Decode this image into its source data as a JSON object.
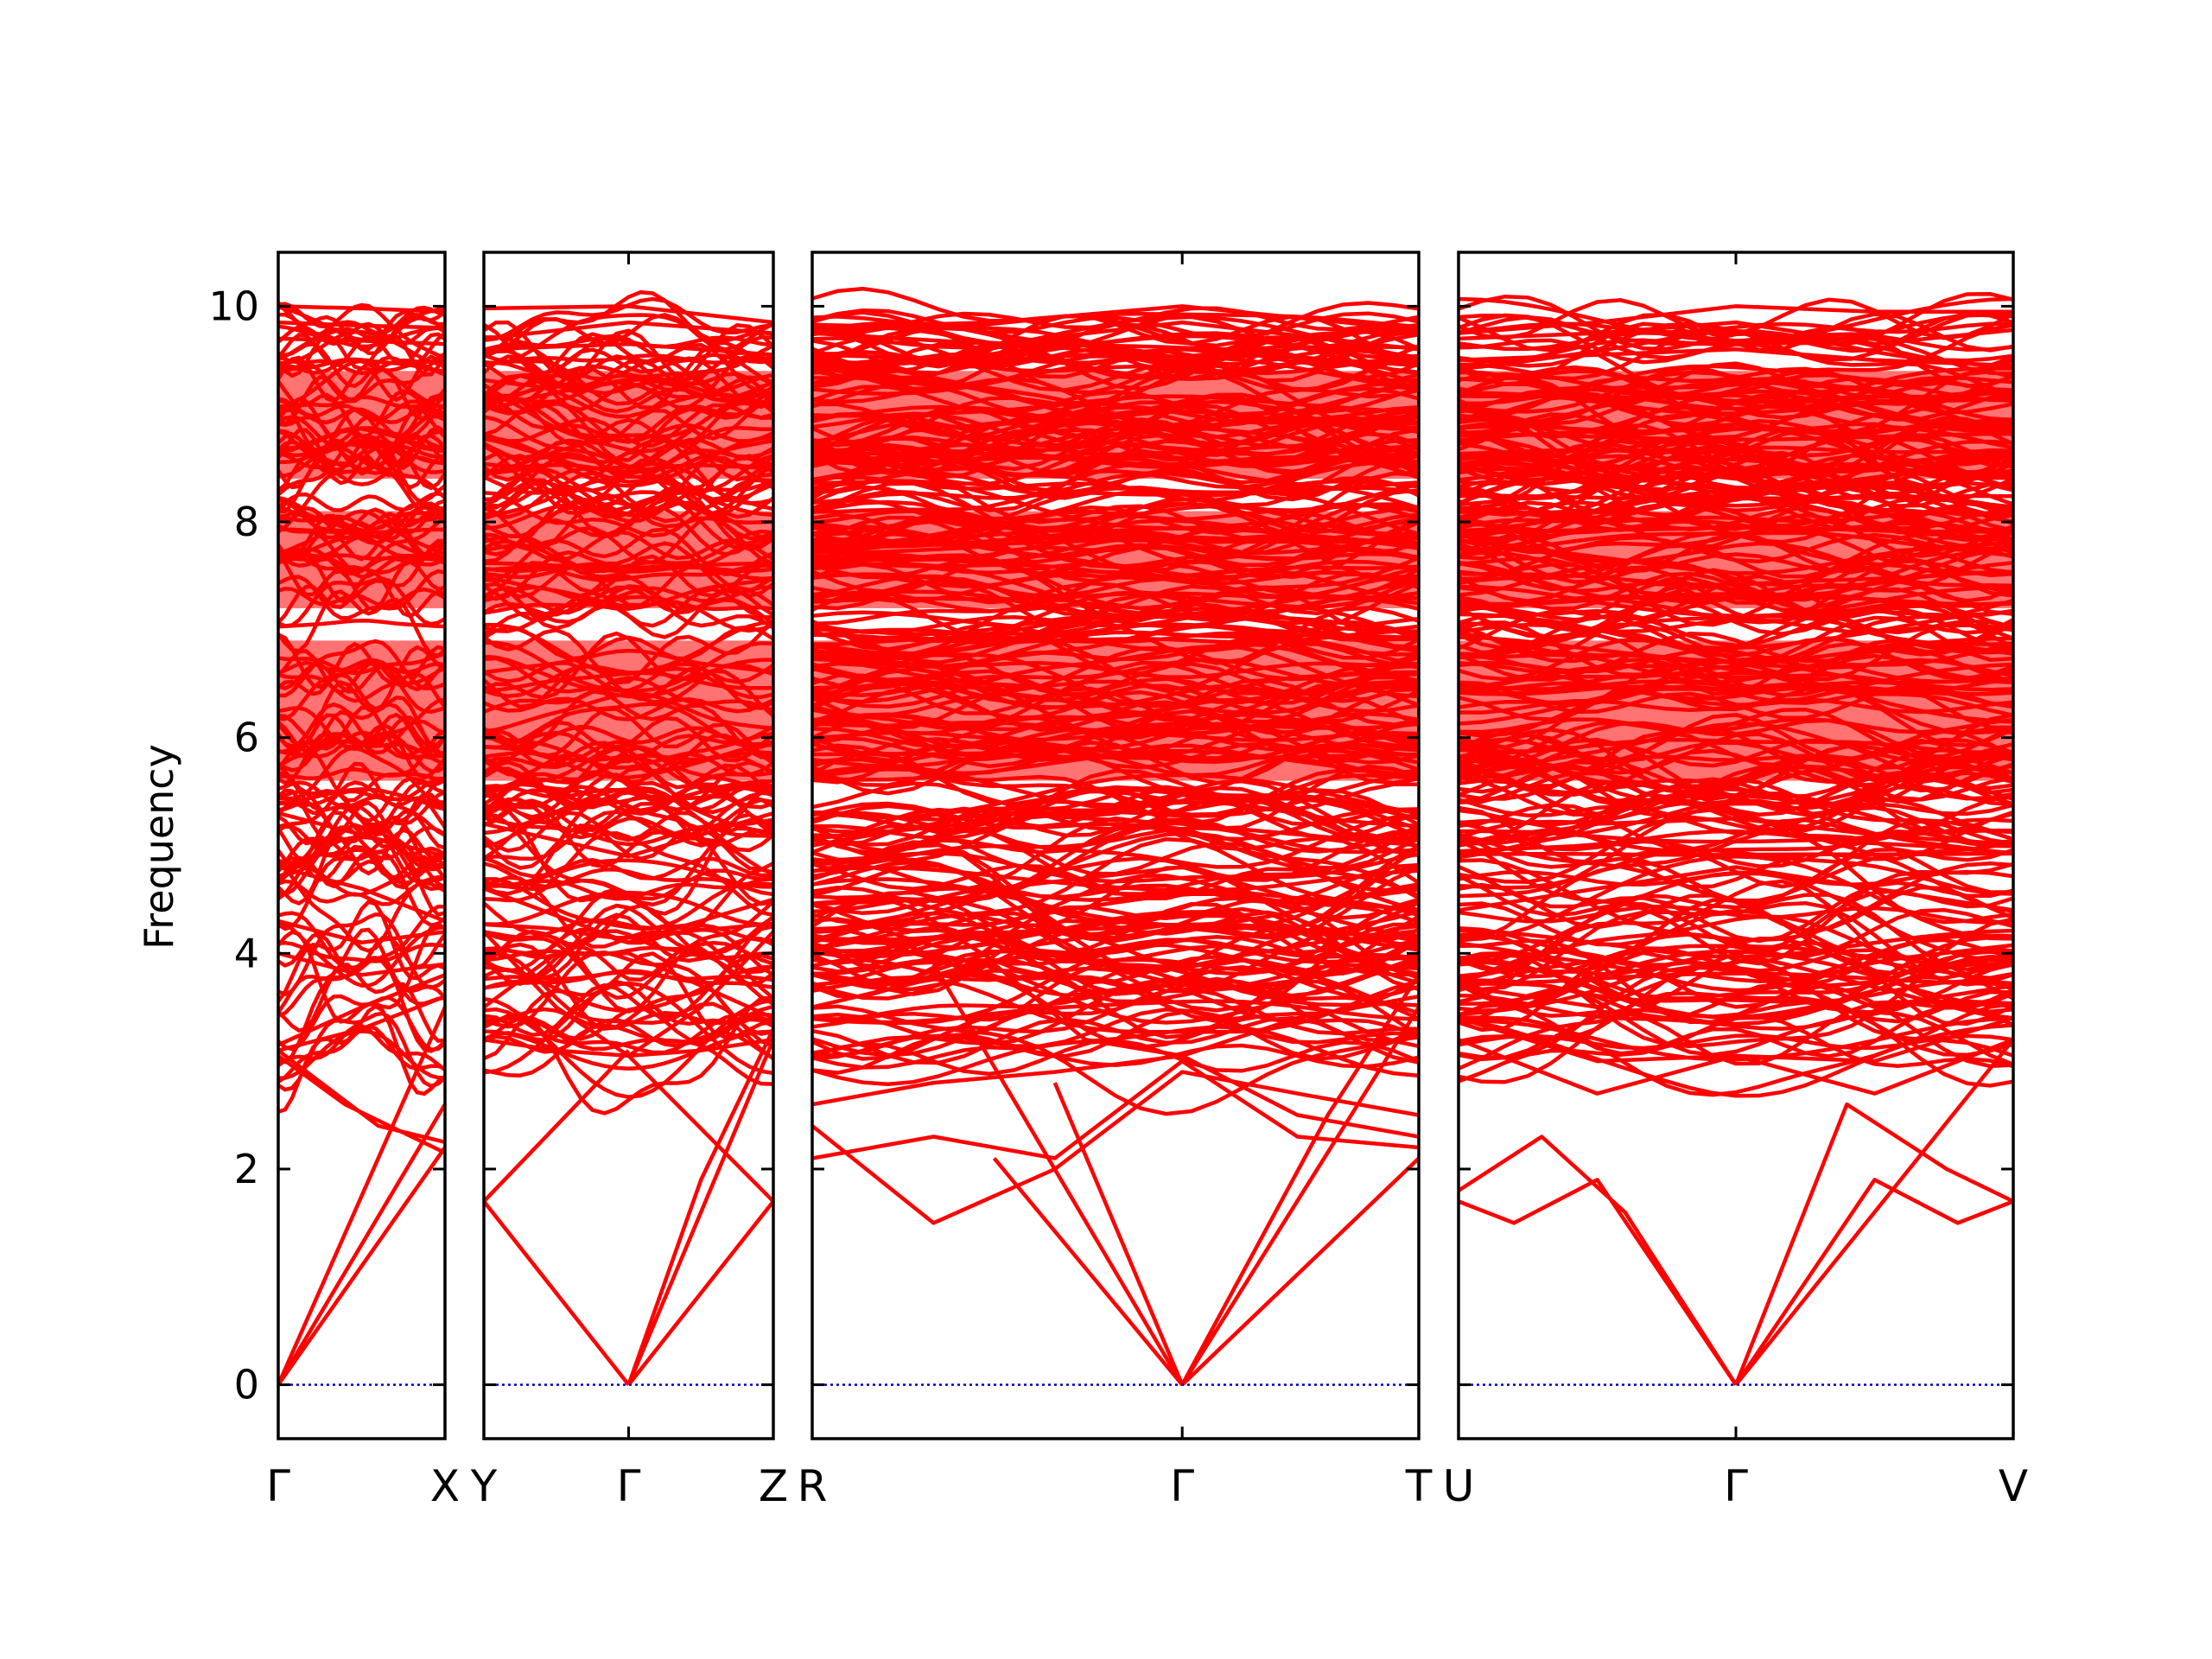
{
  "chart_data": {
    "type": "line",
    "title": "",
    "ylabel": "Frequency",
    "ylim": [
      -0.5,
      10.5
    ],
    "yticks": [
      0,
      2,
      4,
      6,
      8,
      10
    ],
    "colors": {
      "bands": "#ff0000",
      "zero_line": "#0000cc",
      "axes": "#000000"
    },
    "grid": false,
    "panels": [
      {
        "name": "panel-gamma-x",
        "kpoints": [
          {
            "label": "Γ",
            "pos": 0
          },
          {
            "label": "X",
            "pos": 1
          }
        ]
      },
      {
        "name": "panel-y-gamma-z",
        "kpoints": [
          {
            "label": "Y",
            "pos": 0
          },
          {
            "label": "Γ",
            "pos": 0.5
          },
          {
            "label": "Z",
            "pos": 1
          }
        ]
      },
      {
        "name": "panel-r-gamma-t",
        "kpoints": [
          {
            "label": "R",
            "pos": 0
          },
          {
            "label": "Γ",
            "pos": 0.61
          },
          {
            "label": "T",
            "pos": 1
          }
        ]
      },
      {
        "name": "panel-u-gamma-v",
        "kpoints": [
          {
            "label": "U",
            "pos": 0
          },
          {
            "label": "Γ",
            "pos": 0.5
          },
          {
            "label": "V",
            "pos": 1
          }
        ]
      }
    ],
    "series": [
      {
        "panel": 0,
        "pts": [
          [
            0,
            0
          ],
          [
            1,
            3.5
          ]
        ]
      },
      {
        "panel": 0,
        "pts": [
          [
            0,
            0
          ],
          [
            1,
            2.6
          ]
        ]
      },
      {
        "panel": 0,
        "pts": [
          [
            0,
            0
          ],
          [
            1,
            2.2
          ]
        ]
      },
      {
        "panel": 0,
        "pts": [
          [
            0,
            3.1
          ],
          [
            0.3,
            2.75
          ],
          [
            0.6,
            2.4
          ],
          [
            1,
            2.25
          ]
        ]
      },
      {
        "panel": 0,
        "pts": [
          [
            0,
            3.05
          ],
          [
            0.4,
            2.6
          ],
          [
            1,
            2.15
          ]
        ]
      },
      {
        "panel": 0,
        "pts": [
          [
            0,
            3.1
          ],
          [
            0.5,
            3.3
          ],
          [
            1,
            3.6
          ]
        ]
      },
      {
        "panel": 0,
        "pts": [
          [
            0,
            3.15
          ],
          [
            0.5,
            3.5
          ],
          [
            1,
            3.8
          ]
        ]
      },
      {
        "panel": 0,
        "pts": [
          [
            0,
            4.0
          ],
          [
            0.5,
            3.8
          ],
          [
            1,
            3.9
          ]
        ]
      },
      {
        "panel": 0,
        "pts": [
          [
            0,
            4.3
          ],
          [
            0.5,
            4.1
          ],
          [
            1,
            4.2
          ]
        ]
      },
      {
        "panel": 0,
        "pts": [
          [
            0,
            4.8
          ],
          [
            0.5,
            4.6
          ],
          [
            1,
            4.3
          ]
        ]
      },
      {
        "panel": 0,
        "pts": [
          [
            0,
            5.3
          ],
          [
            0.5,
            5.1
          ],
          [
            1,
            4.9
          ]
        ]
      },
      {
        "panel": 0,
        "pts": [
          [
            0,
            10.0
          ],
          [
            0.5,
            9.98
          ],
          [
            1,
            9.95
          ]
        ]
      },
      {
        "panel": 0,
        "pts": [
          [
            0,
            9.85
          ],
          [
            0.5,
            9.82
          ],
          [
            1,
            9.8
          ]
        ]
      },
      {
        "panel": 0,
        "pts": [
          [
            0,
            9.7
          ],
          [
            0.5,
            9.68
          ],
          [
            1,
            9.65
          ]
        ]
      },
      {
        "panel": 1,
        "pts": [
          [
            0,
            1.7
          ],
          [
            0.5,
            0
          ]
        ]
      },
      {
        "panel": 1,
        "pts": [
          [
            0,
            1.7
          ],
          [
            0.5,
            3.1
          ]
        ]
      },
      {
        "panel": 1,
        "pts": [
          [
            0.5,
            0
          ],
          [
            1,
            1.7
          ]
        ]
      },
      {
        "panel": 1,
        "pts": [
          [
            0.5,
            3.05
          ],
          [
            1,
            1.7
          ]
        ]
      },
      {
        "panel": 1,
        "pts": [
          [
            0.5,
            0
          ],
          [
            1,
            3.2
          ]
        ]
      },
      {
        "panel": 1,
        "pts": [
          [
            0.5,
            0
          ],
          [
            0.75,
            1.9
          ],
          [
            1,
            3.3
          ]
        ]
      },
      {
        "panel": 1,
        "pts": [
          [
            0,
            3.2
          ],
          [
            0.25,
            3.1
          ],
          [
            0.5,
            3.05
          ],
          [
            0.75,
            3.1
          ],
          [
            1,
            3.2
          ]
        ]
      },
      {
        "panel": 1,
        "pts": [
          [
            0,
            4.2
          ],
          [
            0.25,
            3.5
          ],
          [
            0.5,
            3.05
          ],
          [
            0.75,
            3.5
          ],
          [
            1,
            4.2
          ]
        ]
      },
      {
        "panel": 1,
        "pts": [
          [
            0,
            3.5
          ],
          [
            0.25,
            4.0
          ],
          [
            0.5,
            4.0
          ],
          [
            0.75,
            3.7
          ],
          [
            1,
            3.4
          ]
        ]
      },
      {
        "panel": 1,
        "pts": [
          [
            0,
            4.6
          ],
          [
            0.5,
            4.1
          ],
          [
            1,
            4.5
          ]
        ]
      },
      {
        "panel": 1,
        "pts": [
          [
            0,
            5.2
          ],
          [
            0.5,
            4.9
          ],
          [
            1,
            5.3
          ]
        ]
      },
      {
        "panel": 1,
        "pts": [
          [
            0,
            9.98
          ],
          [
            0.5,
            10.0
          ],
          [
            1,
            9.85
          ]
        ]
      },
      {
        "panel": 1,
        "pts": [
          [
            0,
            9.7
          ],
          [
            0.5,
            9.85
          ],
          [
            1,
            9.75
          ]
        ]
      },
      {
        "panel": 1,
        "pts": [
          [
            0,
            9.6
          ],
          [
            0.5,
            9.65
          ],
          [
            1,
            9.55
          ]
        ]
      },
      {
        "panel": 2,
        "pts": [
          [
            0,
            2.4
          ],
          [
            0.2,
            1.5
          ],
          [
            0.4,
            2.0
          ],
          [
            0.61,
            2.9
          ],
          [
            0.8,
            2.7
          ],
          [
            1,
            2.5
          ]
        ]
      },
      {
        "panel": 2,
        "pts": [
          [
            0,
            2.1
          ],
          [
            0.2,
            2.3
          ],
          [
            0.4,
            2.1
          ],
          [
            0.61,
            3.0
          ],
          [
            0.8,
            2.3
          ],
          [
            1,
            2.2
          ]
        ]
      },
      {
        "panel": 2,
        "pts": [
          [
            0,
            2.6
          ],
          [
            0.2,
            2.8
          ],
          [
            0.4,
            2.9
          ],
          [
            0.61,
            3.05
          ],
          [
            0.8,
            2.5
          ],
          [
            1,
            2.3
          ]
        ]
      },
      {
        "panel": 2,
        "pts": [
          [
            0,
            3.5
          ],
          [
            0.3,
            3.9
          ],
          [
            0.45,
            3.2
          ],
          [
            0.61,
            3.05
          ],
          [
            0.8,
            3.4
          ],
          [
            1,
            3.6
          ]
        ]
      },
      {
        "panel": 2,
        "pts": [
          [
            0.2,
            3.9
          ],
          [
            0.61,
            0
          ]
        ]
      },
      {
        "panel": 2,
        "pts": [
          [
            0.3,
            2.1
          ],
          [
            0.61,
            0
          ]
        ]
      },
      {
        "panel": 2,
        "pts": [
          [
            0.4,
            2.8
          ],
          [
            0.61,
            0
          ]
        ]
      },
      {
        "panel": 2,
        "pts": [
          [
            0.61,
            0
          ],
          [
            1,
            2.1
          ]
        ]
      },
      {
        "panel": 2,
        "pts": [
          [
            0.61,
            0
          ],
          [
            1,
            3.5
          ]
        ]
      },
      {
        "panel": 2,
        "pts": [
          [
            0.61,
            0
          ],
          [
            0.85,
            2.5
          ],
          [
            1,
            3.8
          ]
        ]
      },
      {
        "panel": 2,
        "pts": [
          [
            0,
            4.1
          ],
          [
            0.3,
            4.6
          ],
          [
            0.61,
            4.8
          ],
          [
            0.8,
            4.5
          ],
          [
            1,
            4.4
          ]
        ]
      },
      {
        "panel": 2,
        "pts": [
          [
            0,
            5.0
          ],
          [
            0.3,
            5.3
          ],
          [
            0.61,
            5.2
          ],
          [
            1,
            5.0
          ]
        ]
      },
      {
        "panel": 2,
        "pts": [
          [
            0,
            9.8
          ],
          [
            0.3,
            9.85
          ],
          [
            0.61,
            10.0
          ],
          [
            1,
            9.78
          ]
        ]
      },
      {
        "panel": 2,
        "pts": [
          [
            0,
            9.75
          ],
          [
            0.3,
            9.65
          ],
          [
            0.61,
            9.85
          ],
          [
            1,
            9.6
          ]
        ]
      },
      {
        "panel": 2,
        "pts": [
          [
            0,
            9.55
          ],
          [
            0.3,
            9.5
          ],
          [
            0.61,
            9.6
          ],
          [
            1,
            9.45
          ]
        ]
      },
      {
        "panel": 3,
        "pts": [
          [
            0,
            1.7
          ],
          [
            0.1,
            1.5
          ],
          [
            0.25,
            1.9
          ],
          [
            0.5,
            0
          ]
        ]
      },
      {
        "panel": 3,
        "pts": [
          [
            0,
            1.8
          ],
          [
            0.15,
            2.3
          ],
          [
            0.3,
            1.6
          ],
          [
            0.5,
            0
          ]
        ]
      },
      {
        "panel": 3,
        "pts": [
          [
            0.5,
            0
          ],
          [
            0.75,
            1.9
          ],
          [
            0.9,
            1.5
          ],
          [
            1,
            1.7
          ]
        ]
      },
      {
        "panel": 3,
        "pts": [
          [
            0.5,
            0
          ],
          [
            0.7,
            2.6
          ],
          [
            0.88,
            2.0
          ],
          [
            1,
            1.7
          ]
        ]
      },
      {
        "panel": 3,
        "pts": [
          [
            0.5,
            0
          ],
          [
            1,
            3.2
          ]
        ]
      },
      {
        "panel": 3,
        "pts": [
          [
            0,
            3.2
          ],
          [
            0.25,
            2.7
          ],
          [
            0.5,
            3.05
          ],
          [
            0.75,
            2.7
          ],
          [
            1,
            3.2
          ]
        ]
      },
      {
        "panel": 3,
        "pts": [
          [
            0,
            3.4
          ],
          [
            0.25,
            3.0
          ],
          [
            0.5,
            3.05
          ],
          [
            0.75,
            3.0
          ],
          [
            1,
            3.4
          ]
        ]
      },
      {
        "panel": 3,
        "pts": [
          [
            0,
            3.7
          ],
          [
            0.25,
            3.5
          ],
          [
            0.5,
            4.0
          ],
          [
            0.75,
            3.5
          ],
          [
            1,
            3.7
          ]
        ]
      },
      {
        "panel": 3,
        "pts": [
          [
            0,
            4.4
          ],
          [
            0.25,
            4.6
          ],
          [
            0.5,
            4.8
          ],
          [
            0.75,
            4.6
          ],
          [
            1,
            4.4
          ]
        ]
      },
      {
        "panel": 3,
        "pts": [
          [
            0,
            5.0
          ],
          [
            0.25,
            5.2
          ],
          [
            0.5,
            5.25
          ],
          [
            0.75,
            5.1
          ],
          [
            1,
            5.0
          ]
        ]
      },
      {
        "panel": 3,
        "pts": [
          [
            0,
            9.75
          ],
          [
            0.25,
            9.85
          ],
          [
            0.5,
            10.0
          ],
          [
            0.75,
            9.95
          ],
          [
            1,
            9.95
          ]
        ]
      },
      {
        "panel": 3,
        "pts": [
          [
            0,
            9.7
          ],
          [
            0.25,
            9.75
          ],
          [
            0.5,
            9.85
          ],
          [
            0.75,
            9.65
          ],
          [
            1,
            9.78
          ]
        ]
      },
      {
        "panel": 3,
        "pts": [
          [
            0,
            9.5
          ],
          [
            0.25,
            9.55
          ],
          [
            0.5,
            9.6
          ],
          [
            0.75,
            9.5
          ],
          [
            1,
            9.45
          ]
        ]
      }
    ]
  }
}
